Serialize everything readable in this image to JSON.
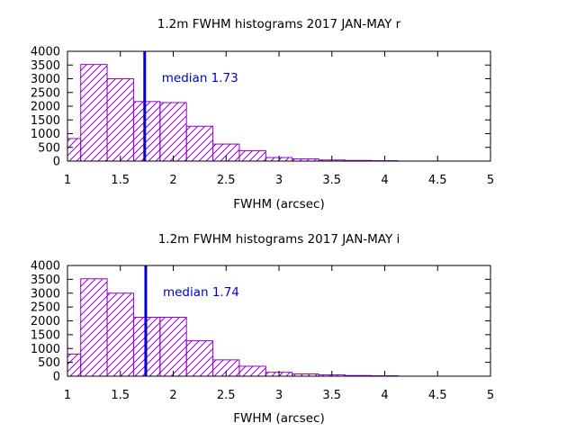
{
  "chart_data": [
    {
      "type": "bar",
      "title": "1.2m FWHM histograms 2017 JAN-MAY r",
      "xlabel": "FWHM (arcsec)",
      "ylabel": "",
      "xlim": [
        1,
        5
      ],
      "ylim": [
        0,
        4000
      ],
      "x_ticks": [
        "1",
        "1.5",
        "2",
        "2.5",
        "3",
        "3.5",
        "4",
        "4.5",
        "5"
      ],
      "y_ticks": [
        "0",
        "500",
        "1000",
        "1500",
        "2000",
        "2500",
        "3000",
        "3500",
        "4000"
      ],
      "bin_width": 0.25,
      "bins": [
        {
          "x0": 1.0,
          "x1": 1.125,
          "value": 820
        },
        {
          "x0": 1.125,
          "x1": 1.375,
          "value": 3520
        },
        {
          "x0": 1.375,
          "x1": 1.625,
          "value": 3000
        },
        {
          "x0": 1.625,
          "x1": 1.875,
          "value": 2170
        },
        {
          "x0": 1.875,
          "x1": 2.125,
          "value": 2130
        },
        {
          "x0": 2.125,
          "x1": 2.375,
          "value": 1270
        },
        {
          "x0": 2.375,
          "x1": 2.625,
          "value": 620
        },
        {
          "x0": 2.625,
          "x1": 2.875,
          "value": 380
        },
        {
          "x0": 2.875,
          "x1": 3.125,
          "value": 130
        },
        {
          "x0": 3.125,
          "x1": 3.375,
          "value": 80
        },
        {
          "x0": 3.375,
          "x1": 3.625,
          "value": 40
        },
        {
          "x0": 3.625,
          "x1": 3.875,
          "value": 25
        },
        {
          "x0": 3.875,
          "x1": 4.125,
          "value": 15
        }
      ],
      "median": 1.73,
      "median_label": "median 1.73",
      "bar_color": "#9400d3",
      "median_color": "#0000cc",
      "grid": false
    },
    {
      "type": "bar",
      "title": "1.2m FWHM histograms 2017 JAN-MAY i",
      "xlabel": "FWHM (arcsec)",
      "ylabel": "",
      "xlim": [
        1,
        5
      ],
      "ylim": [
        0,
        4000
      ],
      "x_ticks": [
        "1",
        "1.5",
        "2",
        "2.5",
        "3",
        "3.5",
        "4",
        "4.5",
        "5"
      ],
      "y_ticks": [
        "0",
        "500",
        "1000",
        "1500",
        "2000",
        "2500",
        "3000",
        "3500",
        "4000"
      ],
      "bin_width": 0.25,
      "bins": [
        {
          "x0": 1.0,
          "x1": 1.125,
          "value": 800
        },
        {
          "x0": 1.125,
          "x1": 1.375,
          "value": 3520
        },
        {
          "x0": 1.375,
          "x1": 1.625,
          "value": 3000
        },
        {
          "x0": 1.625,
          "x1": 1.875,
          "value": 2130
        },
        {
          "x0": 1.875,
          "x1": 2.125,
          "value": 2130
        },
        {
          "x0": 2.125,
          "x1": 2.375,
          "value": 1280
        },
        {
          "x0": 2.375,
          "x1": 2.625,
          "value": 590
        },
        {
          "x0": 2.625,
          "x1": 2.875,
          "value": 360
        },
        {
          "x0": 2.875,
          "x1": 3.125,
          "value": 140
        },
        {
          "x0": 3.125,
          "x1": 3.375,
          "value": 80
        },
        {
          "x0": 3.375,
          "x1": 3.625,
          "value": 50
        },
        {
          "x0": 3.625,
          "x1": 3.875,
          "value": 25
        },
        {
          "x0": 3.875,
          "x1": 4.125,
          "value": 15
        }
      ],
      "median": 1.74,
      "median_label": "median 1.74",
      "bar_color": "#9400d3",
      "median_color": "#0000cc",
      "grid": false
    }
  ]
}
